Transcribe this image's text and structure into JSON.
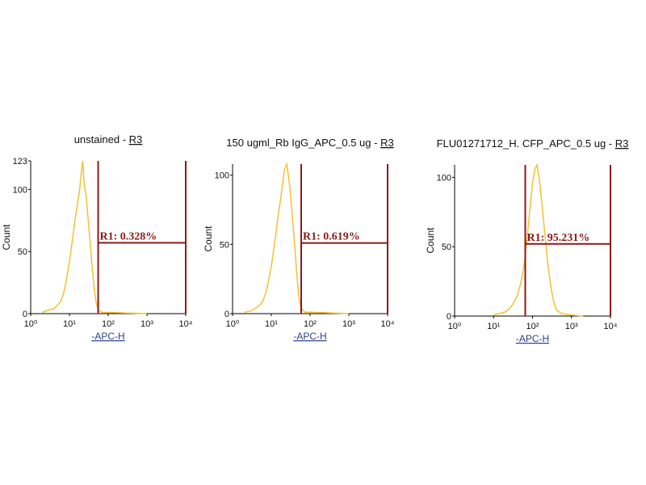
{
  "chart_data": [
    {
      "type": "histogram",
      "title": "unstained -",
      "gate_name": "R3",
      "x_label": "-APC-H",
      "y_label": "Count",
      "x_log": true,
      "xlim": [
        1,
        10000
      ],
      "xticks": [
        {
          "value": 1,
          "label": "10⁰"
        },
        {
          "value": 10,
          "label": "10¹"
        },
        {
          "value": 100,
          "label": "10²"
        },
        {
          "value": 1000,
          "label": "10³"
        },
        {
          "value": 10000,
          "label": "10⁴"
        }
      ],
      "ylim": [
        0,
        123
      ],
      "yticks": [
        0,
        50,
        100,
        123
      ],
      "color": "#f2c230",
      "x": [
        2,
        3,
        4,
        5,
        6,
        7,
        8,
        10,
        12,
        14,
        16,
        18,
        20,
        22,
        24,
        27,
        30,
        34,
        38,
        43,
        48,
        55,
        70,
        100,
        1000
      ],
      "values": [
        1,
        3,
        4,
        7,
        10,
        16,
        24,
        42,
        60,
        76,
        88,
        98,
        112,
        123,
        104,
        94,
        78,
        58,
        40,
        22,
        10,
        3,
        1,
        1,
        0
      ],
      "gate": {
        "label": "R1: 0.328%",
        "x": [
          55,
          10000
        ],
        "y": 57,
        "color": "#8b1a1a"
      }
    },
    {
      "type": "histogram",
      "title": "150 ugml_Rb IgG_APC_0.5 ug -",
      "gate_name": "R3",
      "x_label": "-APC-H",
      "y_label": "Count",
      "x_log": true,
      "xlim": [
        1,
        10000
      ],
      "xticks": [
        {
          "value": 1,
          "label": "10⁰"
        },
        {
          "value": 10,
          "label": "10¹"
        },
        {
          "value": 100,
          "label": "10²"
        },
        {
          "value": 1000,
          "label": "10³"
        },
        {
          "value": 10000,
          "label": "10⁴"
        }
      ],
      "ylim": [
        0,
        108
      ],
      "yticks": [
        0,
        50,
        100
      ],
      "color": "#f2c230",
      "x": [
        2,
        3,
        4,
        5,
        6,
        7,
        8,
        10,
        12,
        14,
        16,
        18,
        20,
        22,
        25,
        28,
        31,
        35,
        40,
        45,
        50,
        58,
        75,
        110,
        1000
      ],
      "values": [
        1,
        2,
        4,
        6,
        9,
        14,
        20,
        34,
        50,
        64,
        76,
        86,
        96,
        104,
        108,
        98,
        88,
        70,
        50,
        30,
        14,
        4,
        1,
        1,
        0
      ],
      "gate": {
        "label": "R1: 0.619%",
        "x": [
          59,
          10000
        ],
        "y": 51,
        "color": "#8b1a1a"
      }
    },
    {
      "type": "histogram",
      "title": "FLU01271712_H. CFP_APC_0.5 ug -",
      "gate_name": "R3",
      "x_label": "-APC-H",
      "y_label": "Count",
      "x_log": true,
      "xlim": [
        1,
        10000
      ],
      "xticks": [
        {
          "value": 1,
          "label": "10⁰"
        },
        {
          "value": 10,
          "label": "10¹"
        },
        {
          "value": 100,
          "label": "10²"
        },
        {
          "value": 1000,
          "label": "10³"
        },
        {
          "value": 10000,
          "label": "10⁴"
        }
      ],
      "ylim": [
        0,
        109
      ],
      "yticks": [
        0,
        50,
        100
      ],
      "color": "#f2c230",
      "x": [
        10,
        15,
        20,
        25,
        30,
        40,
        50,
        60,
        70,
        80,
        90,
        100,
        115,
        130,
        150,
        170,
        190,
        220,
        250,
        300,
        350,
        420,
        550,
        800,
        2000
      ],
      "values": [
        1,
        2,
        3,
        5,
        8,
        14,
        24,
        36,
        52,
        68,
        84,
        96,
        106,
        109,
        98,
        84,
        70,
        52,
        36,
        20,
        10,
        4,
        2,
        1,
        0
      ],
      "gate": {
        "label": "R1: 95.231%",
        "x": [
          65,
          10000
        ],
        "y": 52,
        "color": "#8b1a1a"
      }
    }
  ]
}
